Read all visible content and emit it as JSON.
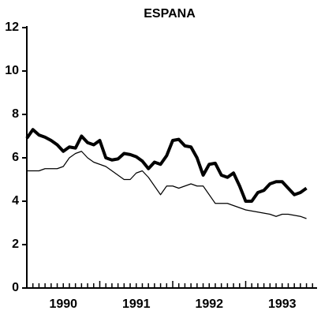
{
  "chart_data": {
    "type": "line",
    "title": "ESPANA",
    "x": [
      1990,
      1990.083,
      1990.167,
      1990.25,
      1990.333,
      1990.417,
      1990.5,
      1990.583,
      1990.667,
      1990.75,
      1990.833,
      1990.917,
      1991,
      1991.083,
      1991.167,
      1991.25,
      1991.333,
      1991.417,
      1991.5,
      1991.583,
      1991.667,
      1991.75,
      1991.833,
      1991.917,
      1992,
      1992.083,
      1992.167,
      1992.25,
      1992.333,
      1992.417,
      1992.5,
      1992.583,
      1992.667,
      1992.75,
      1992.833,
      1992.917,
      1993,
      1993.083,
      1993.167,
      1993.25,
      1993.333,
      1993.417,
      1993.5,
      1993.583,
      1993.667,
      1993.75,
      1993.833
    ],
    "series": [
      {
        "color": "#000000",
        "width": 4,
        "values": [
          6.9,
          7.3,
          7.05,
          6.95,
          6.8,
          6.6,
          6.3,
          6.5,
          6.45,
          7.0,
          6.7,
          6.6,
          6.8,
          6.0,
          5.9,
          5.95,
          6.2,
          6.15,
          6.05,
          5.85,
          5.5,
          5.8,
          5.7,
          6.1,
          6.8,
          6.85,
          6.55,
          6.5,
          6.0,
          5.2,
          5.7,
          5.75,
          5.2,
          5.1,
          5.3,
          4.7,
          4.0,
          4.0,
          4.4,
          4.5,
          4.8,
          4.9,
          4.9,
          4.6,
          4.3,
          4.4,
          4.6
        ]
      },
      {
        "color": "#000000",
        "width": 1.2,
        "values": [
          5.4,
          5.4,
          5.4,
          5.5,
          5.5,
          5.5,
          5.6,
          6.0,
          6.2,
          6.3,
          6.0,
          5.8,
          5.7,
          5.6,
          5.4,
          5.2,
          5.0,
          5.0,
          5.3,
          5.4,
          5.1,
          4.7,
          4.3,
          4.7,
          4.7,
          4.6,
          4.7,
          4.8,
          4.7,
          4.7,
          4.3,
          3.9,
          3.9,
          3.9,
          3.8,
          3.7,
          3.6,
          3.55,
          3.5,
          3.45,
          3.4,
          3.3,
          3.4,
          3.4,
          3.35,
          3.3,
          3.2
        ]
      }
    ],
    "xlim": [
      1990,
      1994
    ],
    "xticks": [
      {
        "value": 1990.5,
        "label": "1990"
      },
      {
        "value": 1991.5,
        "label": "1991"
      },
      {
        "value": 1992.5,
        "label": "1992"
      },
      {
        "value": 1993.5,
        "label": "1993"
      }
    ],
    "ylim": [
      0,
      12
    ],
    "yticks": [
      0,
      2,
      4,
      6,
      8,
      10,
      12
    ]
  }
}
